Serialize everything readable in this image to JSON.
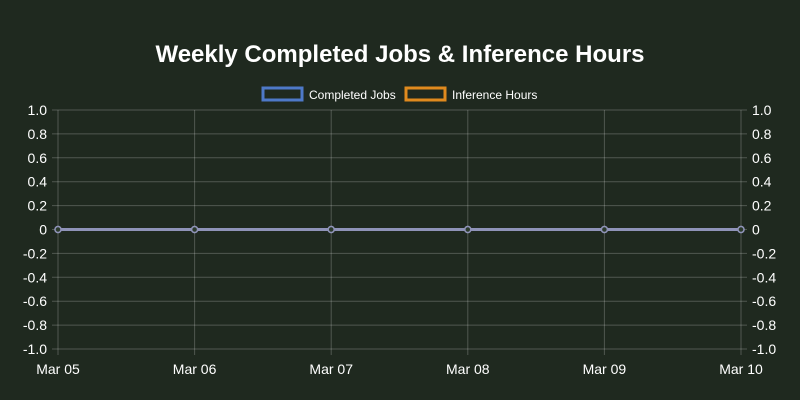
{
  "chart_data": {
    "type": "line",
    "title": "Weekly Completed Jobs & Inference Hours",
    "categories": [
      "Mar 05",
      "Mar 06",
      "Mar 07",
      "Mar 08",
      "Mar 09",
      "Mar 10"
    ],
    "series": [
      {
        "name": "Completed Jobs",
        "values": [
          0,
          0,
          0,
          0,
          0,
          0
        ],
        "color": "#4e79c8",
        "axis": "left"
      },
      {
        "name": "Inference Hours",
        "values": [
          0,
          0,
          0,
          0,
          0,
          0
        ],
        "color": "#e08a1e",
        "axis": "right"
      }
    ],
    "ylim": [
      -1.0,
      1.0
    ],
    "yticks": [
      "1.0",
      "0.8",
      "0.6",
      "0.4",
      "0.2",
      "0",
      "-0.2",
      "-0.4",
      "-0.6",
      "-0.8",
      "-1.0"
    ],
    "y2lim": [
      -1.0,
      1.0
    ],
    "y2ticks": [
      "1.0",
      "0.8",
      "0.6",
      "0.4",
      "0.2",
      "0",
      "-0.2",
      "-0.4",
      "-0.6",
      "-0.8",
      "-1.0"
    ],
    "grid": true,
    "legend": "top-center",
    "colors": {
      "background": "#1f291f",
      "line": "#8f93b8"
    }
  }
}
